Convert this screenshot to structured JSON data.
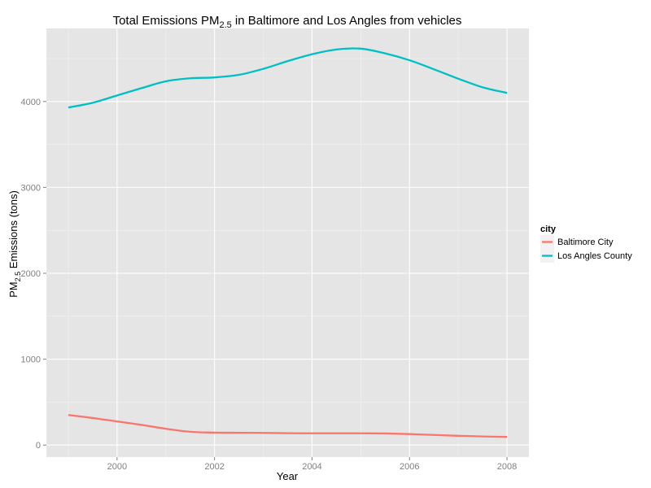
{
  "chart_data": {
    "type": "line",
    "title": {
      "prefix": "Total Emissions  PM",
      "subscript": "2.5",
      "suffix": "  in Baltimore and Los Angles from vehicles"
    },
    "xlabel": "Year",
    "ylabel": {
      "prefix": "PM",
      "subscript": "2.5",
      "suffix": " Emissions (tons)"
    },
    "xlim": [
      1998.55,
      2008.45
    ],
    "ylim": [
      -140,
      4850
    ],
    "x_ticks": [
      2000,
      2002,
      2004,
      2006,
      2008
    ],
    "y_ticks": [
      0,
      1000,
      2000,
      3000,
      4000
    ],
    "grid": true,
    "legend": {
      "title": "city",
      "placement": "right"
    },
    "x": [
      1999,
      1999.5,
      2000,
      2000.5,
      2001,
      2001.5,
      2002,
      2002.5,
      2003,
      2003.5,
      2004,
      2004.5,
      2005,
      2005.5,
      2006,
      2006.5,
      2007,
      2007.5,
      2008
    ],
    "series": [
      {
        "name": "Baltimore City",
        "color": "#f8766d",
        "values": [
          350,
          315,
          275,
          235,
          190,
          155,
          145,
          143,
          142,
          138,
          137,
          137,
          137,
          135,
          128,
          118,
          108,
          100,
          95
        ]
      },
      {
        "name": "Los Angles County",
        "color": "#00bfc4",
        "values": [
          3930,
          3985,
          4070,
          4155,
          4235,
          4270,
          4280,
          4310,
          4380,
          4470,
          4550,
          4605,
          4615,
          4560,
          4480,
          4375,
          4265,
          4165,
          4100
        ]
      }
    ]
  }
}
